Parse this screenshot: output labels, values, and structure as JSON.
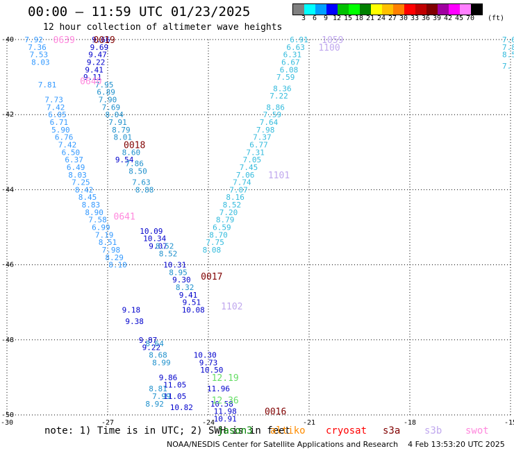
{
  "header": {
    "title": "00:00 — 11:59 UTC 01/23/2025",
    "subtitle": "12 hour collection of altimeter wave heights"
  },
  "colorbar": {
    "colors": [
      "#808080",
      "#00ffff",
      "#00a0ff",
      "#0000ff",
      "#00c000",
      "#00ff00",
      "#008000",
      "#ffff00",
      "#ffc000",
      "#ff8000",
      "#ff0000",
      "#c00000",
      "#800000",
      "#a000a0",
      "#ff00ff",
      "#ff80ff",
      "#000000"
    ],
    "labels": [
      "3",
      "6",
      "9",
      "12",
      "15",
      "18",
      "21",
      "24",
      "27",
      "30",
      "33",
      "36",
      "39",
      "42",
      "45",
      "70"
    ],
    "unit": "(ft)"
  },
  "chart_data": {
    "type": "scatter",
    "xlim": [
      -30,
      -15
    ],
    "ylim": [
      -50,
      -40
    ],
    "x_ticks": [
      "-30",
      "-27",
      "-24",
      "-21",
      "-18",
      "-15"
    ],
    "y_ticks": [
      "-40",
      "-42",
      "-44",
      "-46",
      "-48",
      "-50"
    ],
    "grid": true,
    "tracks": [
      {
        "id": "tr1",
        "color": "#3399ff",
        "points": [
          {
            "lon": -29.2,
            "lat": -40.0,
            "v": "7.92"
          },
          {
            "lon": -29.1,
            "lat": -40.2,
            "v": "7.36"
          },
          {
            "lon": -29.05,
            "lat": -40.4,
            "v": "7.53"
          },
          {
            "lon": -29.0,
            "lat": -40.6,
            "v": "8.03"
          },
          {
            "lon": -28.8,
            "lat": -41.2,
            "v": "7.81"
          },
          {
            "lon": -28.6,
            "lat": -41.6,
            "v": "7.73"
          },
          {
            "lon": -28.55,
            "lat": -41.8,
            "v": "7.42"
          },
          {
            "lon": -28.5,
            "lat": -42.0,
            "v": "6.05"
          },
          {
            "lon": -28.45,
            "lat": -42.2,
            "v": "6.71"
          },
          {
            "lon": -28.4,
            "lat": -42.4,
            "v": "5.90"
          },
          {
            "lon": -28.3,
            "lat": -42.6,
            "v": "6.76"
          },
          {
            "lon": -28.2,
            "lat": -42.8,
            "v": "7.42"
          },
          {
            "lon": -28.1,
            "lat": -43.0,
            "v": "6.50"
          },
          {
            "lon": -28.0,
            "lat": -43.2,
            "v": "6.37"
          },
          {
            "lon": -27.95,
            "lat": -43.4,
            "v": "6.49"
          },
          {
            "lon": -27.9,
            "lat": -43.6,
            "v": "8.03"
          },
          {
            "lon": -27.8,
            "lat": -43.8,
            "v": "7.25"
          },
          {
            "lon": -27.7,
            "lat": -44.0,
            "v": "8.42"
          },
          {
            "lon": -27.6,
            "lat": -44.2,
            "v": "8.45"
          },
          {
            "lon": -27.5,
            "lat": -44.4,
            "v": "8.83"
          },
          {
            "lon": -27.4,
            "lat": -44.6,
            "v": "8.90"
          },
          {
            "lon": -27.3,
            "lat": -44.8,
            "v": "7.58"
          },
          {
            "lon": -27.2,
            "lat": -45.0,
            "v": "6.99"
          },
          {
            "lon": -27.1,
            "lat": -45.2,
            "v": "7.19"
          },
          {
            "lon": -27.0,
            "lat": -45.4,
            "v": "8.51"
          },
          {
            "lon": -26.9,
            "lat": -45.6,
            "v": "7.98"
          },
          {
            "lon": -26.8,
            "lat": -45.8,
            "v": "8.29"
          },
          {
            "lon": -26.7,
            "lat": -46.0,
            "v": "8.10"
          }
        ]
      },
      {
        "id": "tr2",
        "color": "#0000cc",
        "points": [
          {
            "lon": -27.2,
            "lat": -40.0,
            "v": "9.66"
          },
          {
            "lon": -27.25,
            "lat": -40.2,
            "v": "9.69"
          },
          {
            "lon": -27.3,
            "lat": -40.4,
            "v": "9.47"
          },
          {
            "lon": -27.35,
            "lat": -40.6,
            "v": "9.22"
          },
          {
            "lon": -27.4,
            "lat": -40.8,
            "v": "9.41"
          },
          {
            "lon": -27.45,
            "lat": -41.0,
            "v": "9.11"
          },
          {
            "lon": -26.5,
            "lat": -43.2,
            "v": "9.54"
          },
          {
            "lon": -25.7,
            "lat": -45.1,
            "v": "10.09"
          },
          {
            "lon": -25.6,
            "lat": -45.3,
            "v": "10.34"
          },
          {
            "lon": -25.5,
            "lat": -45.5,
            "v": "9.07"
          },
          {
            "lon": -25.0,
            "lat": -46.0,
            "v": "10.31"
          },
          {
            "lon": -24.8,
            "lat": -46.4,
            "v": "9.30"
          },
          {
            "lon": -24.6,
            "lat": -46.8,
            "v": "9.41"
          },
          {
            "lon": -24.5,
            "lat": -47.0,
            "v": "9.51"
          },
          {
            "lon": -24.45,
            "lat": -47.2,
            "v": "10.08"
          },
          {
            "lon": -26.3,
            "lat": -47.2,
            "v": "9.18"
          },
          {
            "lon": -26.2,
            "lat": -47.5,
            "v": "9.38"
          },
          {
            "lon": -25.8,
            "lat": -48.0,
            "v": "9.87"
          },
          {
            "lon": -25.7,
            "lat": -48.2,
            "v": "9.22"
          },
          {
            "lon": -25.2,
            "lat": -49.0,
            "v": "9.86"
          },
          {
            "lon": -24.8,
            "lat": -49.8,
            "v": "10.82"
          },
          {
            "lon": -24.1,
            "lat": -48.4,
            "v": "10.30"
          },
          {
            "lon": -24.0,
            "lat": -48.6,
            "v": "9.73"
          },
          {
            "lon": -23.9,
            "lat": -48.8,
            "v": "10.50"
          },
          {
            "lon": -23.7,
            "lat": -49.3,
            "v": "11.96"
          },
          {
            "lon": -23.6,
            "lat": -49.7,
            "v": "10.58"
          },
          {
            "lon": -23.5,
            "lat": -49.9,
            "v": "11.98"
          },
          {
            "lon": -23.5,
            "lat": -50.1,
            "v": "10.91"
          },
          {
            "lon": -25.0,
            "lat": -49.2,
            "v": "11.05"
          },
          {
            "lon": -25.0,
            "lat": -49.5,
            "v": "11.05"
          }
        ]
      },
      {
        "id": "tr3",
        "color": "#33bbdd",
        "points": [
          {
            "lon": -21.3,
            "lat": -40.0,
            "v": "6.91"
          },
          {
            "lon": -21.4,
            "lat": -40.2,
            "v": "6.63"
          },
          {
            "lon": -21.5,
            "lat": -40.4,
            "v": "6.31"
          },
          {
            "lon": -21.55,
            "lat": -40.6,
            "v": "6.67"
          },
          {
            "lon": -21.6,
            "lat": -40.8,
            "v": "6.08"
          },
          {
            "lon": -21.7,
            "lat": -41.0,
            "v": "7.59"
          },
          {
            "lon": -21.8,
            "lat": -41.3,
            "v": "8.36"
          },
          {
            "lon": -21.9,
            "lat": -41.5,
            "v": "7.22"
          },
          {
            "lon": -22.0,
            "lat": -41.8,
            "v": "8.86"
          },
          {
            "lon": -22.1,
            "lat": -42.0,
            "v": "7.59"
          },
          {
            "lon": -22.2,
            "lat": -42.2,
            "v": "7.64"
          },
          {
            "lon": -22.3,
            "lat": -42.4,
            "v": "7.98"
          },
          {
            "lon": -22.4,
            "lat": -42.6,
            "v": "7.37"
          },
          {
            "lon": -22.5,
            "lat": -42.8,
            "v": "6.77"
          },
          {
            "lon": -22.6,
            "lat": -43.0,
            "v": "7.31"
          },
          {
            "lon": -22.7,
            "lat": -43.2,
            "v": "7.05"
          },
          {
            "lon": -22.8,
            "lat": -43.4,
            "v": "7.45"
          },
          {
            "lon": -22.9,
            "lat": -43.6,
            "v": "7.06"
          },
          {
            "lon": -23.0,
            "lat": -43.8,
            "v": "7.74"
          },
          {
            "lon": -23.1,
            "lat": -44.0,
            "v": "7.07"
          },
          {
            "lon": -23.2,
            "lat": -44.2,
            "v": "8.16"
          },
          {
            "lon": -23.3,
            "lat": -44.4,
            "v": "8.52"
          },
          {
            "lon": -23.4,
            "lat": -44.6,
            "v": "7.20"
          },
          {
            "lon": -23.5,
            "lat": -44.8,
            "v": "8.79"
          },
          {
            "lon": -23.6,
            "lat": -45.0,
            "v": "6.59"
          },
          {
            "lon": -23.7,
            "lat": -45.2,
            "v": "8.70"
          },
          {
            "lon": -23.8,
            "lat": -45.4,
            "v": "7.75"
          },
          {
            "lon": -23.9,
            "lat": -45.6,
            "v": "8.08"
          }
        ]
      },
      {
        "id": "tr4",
        "color": "#1e90cc",
        "points": [
          {
            "lon": -27.1,
            "lat": -41.2,
            "v": "7.95"
          },
          {
            "lon": -27.05,
            "lat": -41.4,
            "v": "6.89"
          },
          {
            "lon": -27.0,
            "lat": -41.6,
            "v": "7.90"
          },
          {
            "lon": -26.9,
            "lat": -41.8,
            "v": "7.69"
          },
          {
            "lon": -26.8,
            "lat": -42.0,
            "v": "8.04"
          },
          {
            "lon": -26.7,
            "lat": -42.2,
            "v": "7.91"
          },
          {
            "lon": -26.6,
            "lat": -42.4,
            "v": "8.79"
          },
          {
            "lon": -26.55,
            "lat": -42.6,
            "v": "8.01"
          },
          {
            "lon": -26.3,
            "lat": -43.0,
            "v": "8.60"
          },
          {
            "lon": -26.2,
            "lat": -43.3,
            "v": "7.86"
          },
          {
            "lon": -26.1,
            "lat": -43.5,
            "v": "8.50"
          },
          {
            "lon": -26.0,
            "lat": -43.8,
            "v": "7.63"
          },
          {
            "lon": -25.9,
            "lat": -44.0,
            "v": "8.88"
          },
          {
            "lon": -25.3,
            "lat": -45.5,
            "v": "8.52"
          },
          {
            "lon": -25.2,
            "lat": -45.7,
            "v": "8.52"
          },
          {
            "lon": -24.9,
            "lat": -46.2,
            "v": "8.95"
          },
          {
            "lon": -24.7,
            "lat": -46.6,
            "v": "8.32"
          },
          {
            "lon": -25.6,
            "lat": -48.1,
            "v": "8.64"
          },
          {
            "lon": -25.5,
            "lat": -48.4,
            "v": "8.68"
          },
          {
            "lon": -25.4,
            "lat": -48.6,
            "v": "8.99"
          },
          {
            "lon": -25.5,
            "lat": -49.3,
            "v": "8.81"
          },
          {
            "lon": -25.4,
            "lat": -49.5,
            "v": "7.99"
          },
          {
            "lon": -25.6,
            "lat": -49.7,
            "v": "8.92"
          }
        ]
      }
    ],
    "tags": [
      {
        "lon": -27.1,
        "lat": -40.0,
        "text": "0019",
        "color": "#800000"
      },
      {
        "lon": -26.2,
        "lat": -42.8,
        "text": "0018",
        "color": "#800000"
      },
      {
        "lon": -23.9,
        "lat": -46.3,
        "text": "0017",
        "color": "#800000"
      },
      {
        "lon": -22.0,
        "lat": -49.9,
        "text": "0016",
        "color": "#800000"
      },
      {
        "lon": -28.3,
        "lat": -40.0,
        "text": "0639",
        "color": "#ff88dd"
      },
      {
        "lon": -27.5,
        "lat": -41.1,
        "text": "0640",
        "color": "#ff88dd"
      },
      {
        "lon": -26.5,
        "lat": -44.7,
        "text": "0641",
        "color": "#ff88dd"
      },
      {
        "lon": -20.3,
        "lat": -40.0,
        "text": "1059",
        "color": "#c0a8ee"
      },
      {
        "lon": -20.4,
        "lat": -40.2,
        "text": "1100",
        "color": "#c0a8ee"
      },
      {
        "lon": -21.9,
        "lat": -43.6,
        "text": "1101",
        "color": "#c0a8ee"
      },
      {
        "lon": -23.3,
        "lat": -47.1,
        "text": "1102",
        "color": "#c0a8ee"
      },
      {
        "lon": -23.5,
        "lat": -49.0,
        "text": "12.19",
        "color": "#66dd66"
      },
      {
        "lon": -23.5,
        "lat": -49.6,
        "text": "12.36",
        "color": "#66dd66"
      }
    ],
    "edge_fragments": [
      {
        "lon": -15.0,
        "lat": -40.0,
        "text": "7.6",
        "color": "#33bbdd"
      },
      {
        "lon": -15.0,
        "lat": -40.2,
        "text": "7.8",
        "color": "#33bbdd"
      },
      {
        "lon": -15.0,
        "lat": -40.4,
        "text": "8.5",
        "color": "#33bbdd"
      },
      {
        "lon": -15.0,
        "lat": -40.7,
        "text": "7.",
        "color": "#33bbdd"
      }
    ]
  },
  "footer": {
    "note": "note: 1) Time is in UTC; 2) SWH is in feet",
    "satellites": [
      {
        "name": "jason3",
        "color": "#008000"
      },
      {
        "name": "altiko",
        "color": "#ff8c00"
      },
      {
        "name": "cryosat",
        "color": "#ff0000"
      },
      {
        "name": "s3a",
        "color": "#800000"
      },
      {
        "name": "s3b",
        "color": "#c0a8ee"
      },
      {
        "name": "swot",
        "color": "#ff88dd"
      }
    ],
    "credit": "NOAA/NESDIS Center for Satellite Applications and Research",
    "timestamp": "4 Feb 13:53:20 UTC 2025"
  }
}
